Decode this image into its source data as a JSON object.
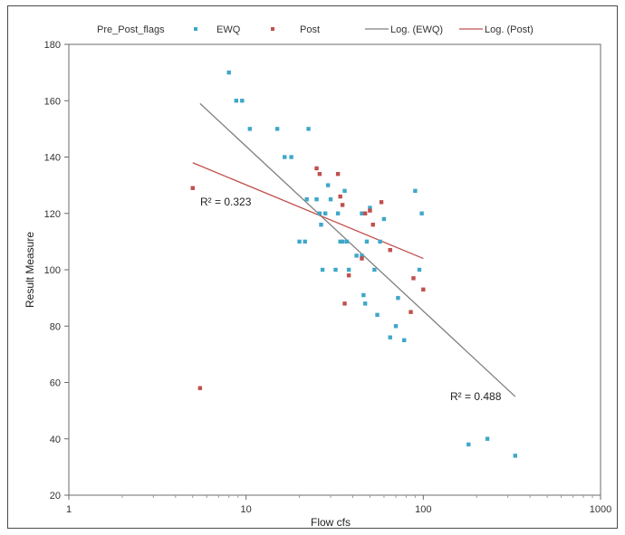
{
  "chart_data": {
    "type": "scatter",
    "xscale": "log",
    "xlabel": "Flow cfs",
    "ylabel": "Result Measure",
    "xlim": [
      1,
      1000
    ],
    "ylim": [
      20,
      180
    ],
    "xticks": [
      "1",
      "10",
      "100",
      "1000"
    ],
    "yticks": [
      "20",
      "40",
      "60",
      "80",
      "100",
      "120",
      "140",
      "160",
      "180"
    ],
    "grid": false,
    "legend": {
      "position": "top",
      "title": "Pre_Post_flags",
      "entries": [
        "EWQ",
        "Post",
        "Log. (EWQ)",
        "Log. (Post)"
      ]
    },
    "series": [
      {
        "name": "EWQ",
        "color": "#3fa7c9",
        "points": [
          [
            8,
            170
          ],
          [
            8.8,
            160
          ],
          [
            9.5,
            160
          ],
          [
            10.5,
            150
          ],
          [
            15,
            150
          ],
          [
            16.5,
            140
          ],
          [
            18,
            140
          ],
          [
            20,
            110
          ],
          [
            21.5,
            110
          ],
          [
            22.5,
            150
          ],
          [
            22,
            125
          ],
          [
            25,
            125
          ],
          [
            26,
            120
          ],
          [
            26.5,
            116
          ],
          [
            27,
            100
          ],
          [
            28,
            120
          ],
          [
            29,
            130
          ],
          [
            30,
            125
          ],
          [
            32,
            100
          ],
          [
            33,
            120
          ],
          [
            34,
            110
          ],
          [
            35,
            110
          ],
          [
            36,
            128
          ],
          [
            37,
            110
          ],
          [
            38,
            100
          ],
          [
            42,
            105
          ],
          [
            45,
            120
          ],
          [
            45,
            105
          ],
          [
            46,
            91
          ],
          [
            47,
            88
          ],
          [
            48,
            110
          ],
          [
            50,
            122
          ],
          [
            53,
            100
          ],
          [
            55,
            84
          ],
          [
            57,
            110
          ],
          [
            60,
            118
          ],
          [
            65,
            76
          ],
          [
            70,
            80
          ],
          [
            72,
            90
          ],
          [
            78,
            75
          ],
          [
            90,
            128
          ],
          [
            95,
            100
          ],
          [
            98,
            120
          ],
          [
            180,
            38
          ],
          [
            230,
            40
          ],
          [
            330,
            34
          ]
        ]
      },
      {
        "name": "Post",
        "color": "#c0504d",
        "points": [
          [
            5,
            129
          ],
          [
            5.5,
            58
          ],
          [
            25,
            136
          ],
          [
            26,
            134
          ],
          [
            33,
            134
          ],
          [
            34,
            126
          ],
          [
            35,
            123
          ],
          [
            36,
            88
          ],
          [
            38,
            98
          ],
          [
            45,
            104
          ],
          [
            47,
            120
          ],
          [
            50,
            121
          ],
          [
            52,
            116
          ],
          [
            58,
            124
          ],
          [
            65,
            107
          ],
          [
            85,
            85
          ],
          [
            88,
            97
          ],
          [
            100,
            93
          ]
        ]
      }
    ],
    "trendlines": [
      {
        "name": "Log. (EWQ)",
        "type": "logarithmic",
        "color": "#808080",
        "from": [
          5.5,
          159
        ],
        "to": [
          330,
          55
        ],
        "r2_label": "R² = 0.488"
      },
      {
        "name": "Log. (Post)",
        "type": "logarithmic",
        "color": "#c0504d",
        "from": [
          5,
          138
        ],
        "to": [
          100,
          104
        ],
        "r2_label": "R² = 0.323"
      }
    ]
  }
}
